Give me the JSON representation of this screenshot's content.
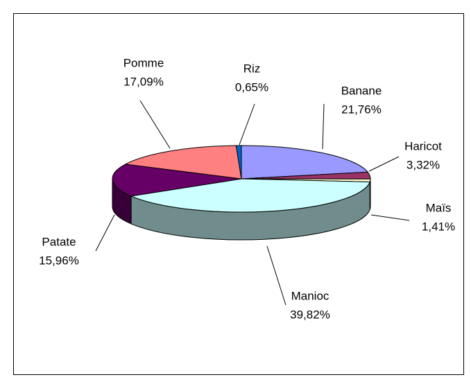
{
  "chart_data": {
    "type": "pie",
    "categories": [
      "Banane",
      "Haricot",
      "Maïs",
      "Manioc",
      "Patate",
      "Pomme",
      "Riz"
    ],
    "values": [
      21.76,
      3.32,
      1.41,
      39.82,
      15.96,
      17.09,
      0.65
    ],
    "value_labels": [
      "21,76%",
      "3,32%",
      "1,41%",
      "39,82%",
      "15,96%",
      "17,09%",
      "0,65%"
    ],
    "colors": [
      "#9999ff",
      "#993366",
      "#ffffcc",
      "#ccffff",
      "#660066",
      "#ff8080",
      "#0066cc"
    ]
  }
}
